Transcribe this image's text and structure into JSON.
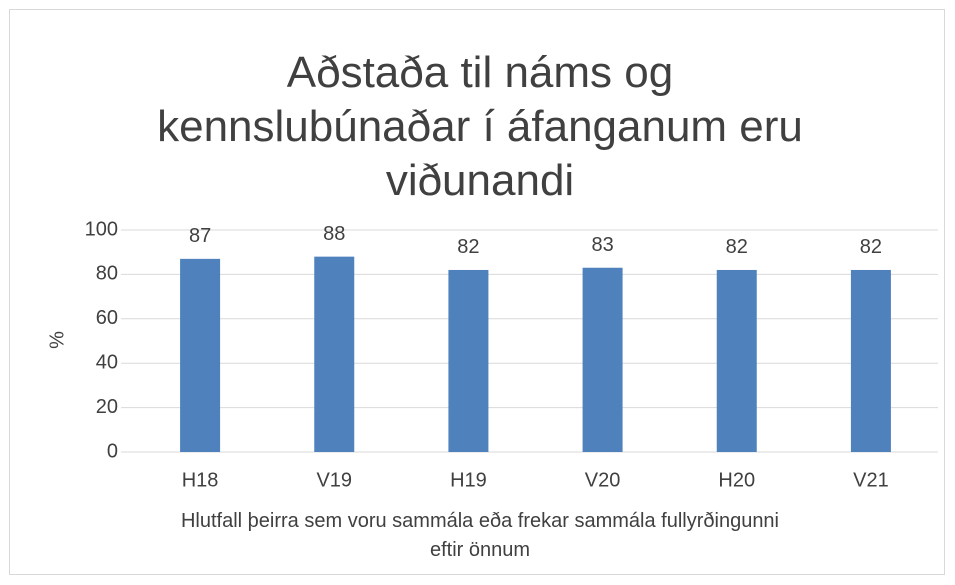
{
  "chart_data": {
    "type": "bar",
    "title": "Aðstaða til náms og kennslubúnaðar í áfanganum eru viðunandi",
    "x_label": "Hlutfall þeirra sem voru sammála eða frekar sammála fullyrðingunni eftir önnum",
    "y_label": "%",
    "categories": [
      "H18",
      "V19",
      "H19",
      "V20",
      "H20",
      "V21"
    ],
    "values": [
      87,
      88,
      82,
      83,
      82,
      82
    ],
    "color": "#4f81bd",
    "ylim": [
      0,
      100
    ],
    "yticks": [
      0,
      20,
      40,
      60,
      80,
      100
    ],
    "grid": true
  }
}
